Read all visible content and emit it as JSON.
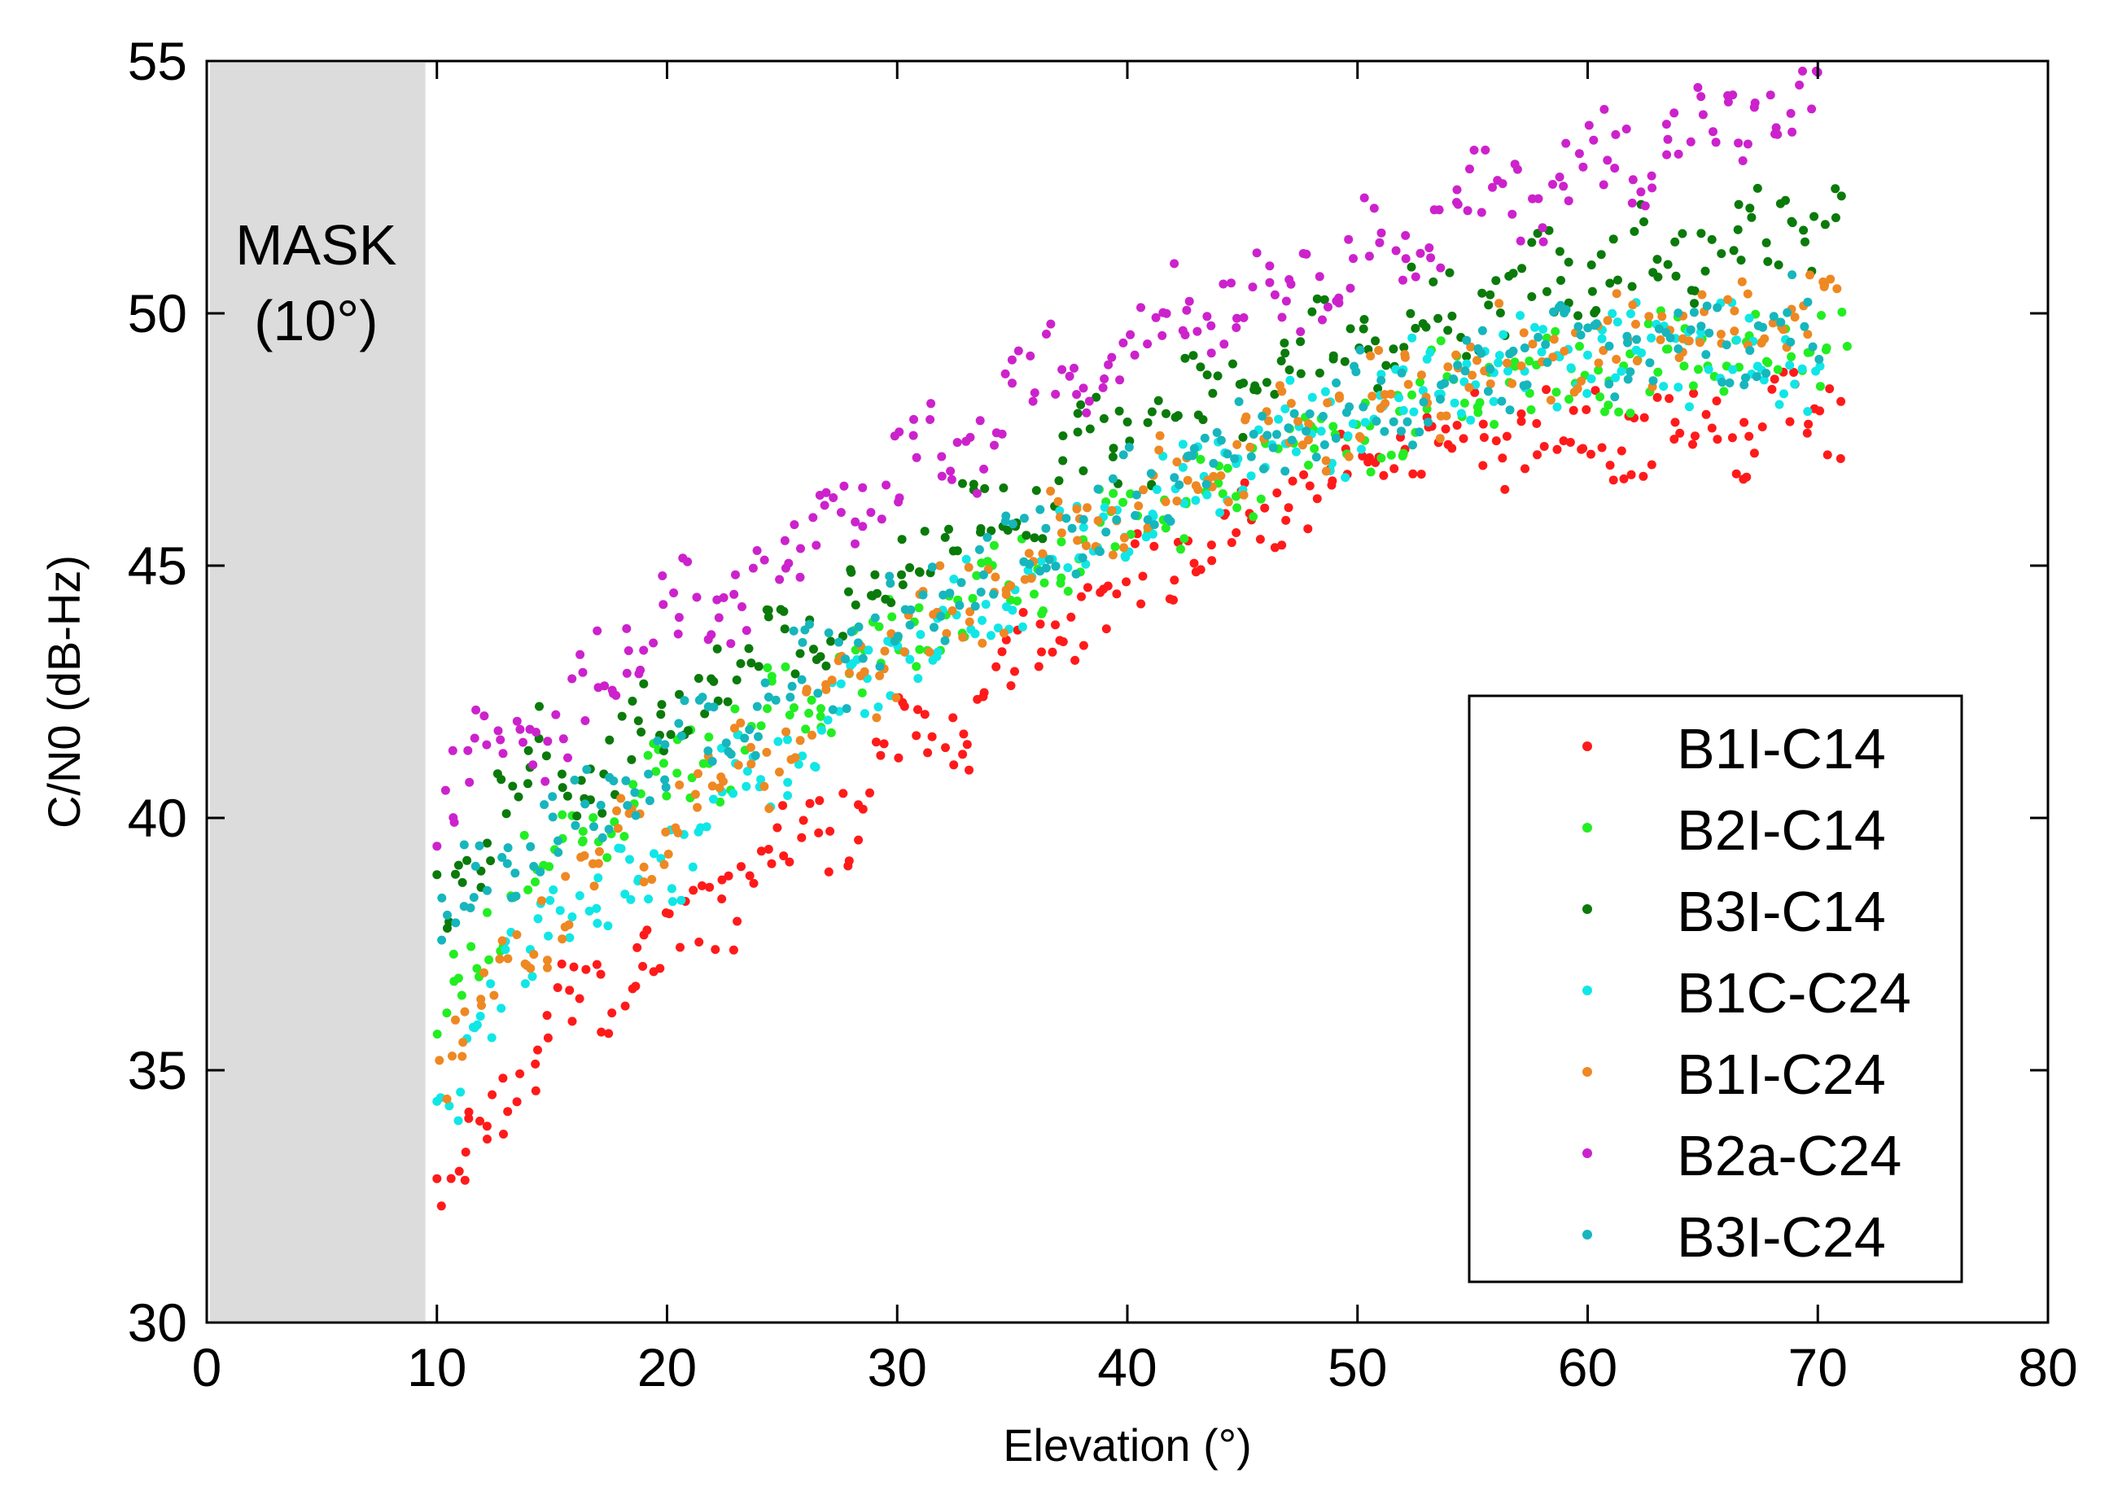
{
  "chart_data": {
    "type": "scatter",
    "title": "",
    "xlabel": "Elevation (°)",
    "ylabel": "C/N0 (dB-Hz)",
    "xlim": [
      0,
      80
    ],
    "ylim": [
      30,
      55
    ],
    "xticks": [
      0,
      10,
      20,
      30,
      40,
      50,
      60,
      70,
      80
    ],
    "yticks": [
      30,
      35,
      40,
      45,
      50,
      55
    ],
    "grid": false,
    "legend_position": "bottom-right",
    "mask_region": {
      "x_from": 0,
      "x_to": 9.5,
      "label_line1": "MASK",
      "label_line2": "(10°)",
      "color": "#dcdcdc"
    },
    "series": [
      {
        "name": "B1I-C14",
        "color": "#ff1a1a",
        "x": [
          10,
          11,
          12,
          13,
          14,
          15,
          16,
          18,
          20,
          22,
          25,
          28,
          30,
          33,
          36,
          40,
          44,
          48,
          52,
          56,
          60,
          64,
          68,
          71
        ],
        "y": [
          32.4,
          33.0,
          34.0,
          34.6,
          35.3,
          35.8,
          36.3,
          36.9,
          37.5,
          38.3,
          39.2,
          40.2,
          41.2,
          42.0,
          43.2,
          44.6,
          45.6,
          46.5,
          47.2,
          47.6,
          47.8,
          47.6,
          47.8,
          48.0
        ]
      },
      {
        "name": "B2I-C14",
        "color": "#22ee22",
        "x": [
          10,
          11,
          12,
          13,
          14,
          15,
          16,
          18,
          20,
          22,
          25,
          28,
          30,
          33,
          36,
          40,
          44,
          48,
          52,
          56,
          60,
          64,
          68,
          71
        ],
        "y": [
          35.8,
          37.0,
          37.8,
          38.5,
          39.0,
          39.4,
          39.8,
          40.3,
          40.8,
          41.3,
          42.2,
          43.0,
          43.6,
          44.2,
          45.0,
          45.6,
          46.6,
          47.4,
          48.1,
          48.6,
          48.7,
          48.9,
          49.2,
          49.8
        ]
      },
      {
        "name": "B3I-C14",
        "color": "#0a7a0a",
        "x": [
          10,
          11,
          12,
          13,
          14,
          15,
          16,
          18,
          20,
          22,
          25,
          28,
          30,
          33,
          36,
          40,
          44,
          48,
          52,
          56,
          60,
          64,
          68,
          71
        ],
        "y": [
          37.9,
          38.8,
          39.8,
          40.6,
          41.1,
          41.2,
          41.0,
          41.2,
          41.8,
          42.8,
          43.6,
          44.3,
          45.0,
          45.8,
          46.6,
          47.5,
          48.4,
          49.2,
          49.8,
          50.3,
          50.8,
          51.2,
          51.5,
          51.8
        ]
      },
      {
        "name": "B1C-C24",
        "color": "#11e6e6",
        "x": [
          10,
          11,
          12,
          13,
          14,
          15,
          16,
          18,
          20,
          22,
          25,
          28,
          30,
          33,
          36,
          40,
          44,
          48,
          52,
          56,
          60,
          64,
          68,
          70
        ],
        "y": [
          35.0,
          35.2,
          35.8,
          36.5,
          37.3,
          38.0,
          38.6,
          38.3,
          39.2,
          40.3,
          41.3,
          42.3,
          43.2,
          44.0,
          45.0,
          45.9,
          46.9,
          47.7,
          48.3,
          48.8,
          49.1,
          49.3,
          49.2,
          49.0
        ]
      },
      {
        "name": "B1I-C24",
        "color": "#ee8822",
        "x": [
          10,
          11,
          12,
          13,
          14,
          15,
          16,
          18,
          20,
          22,
          25,
          28,
          30,
          33,
          36,
          40,
          44,
          48,
          52,
          56,
          60,
          64,
          68,
          71
        ],
        "y": [
          35.4,
          35.7,
          36.3,
          37.1,
          37.8,
          38.3,
          38.8,
          39.3,
          40.0,
          40.6,
          41.5,
          42.6,
          43.4,
          44.2,
          45.2,
          46.1,
          47.0,
          47.9,
          48.5,
          49.0,
          49.4,
          49.7,
          49.9,
          50.1
        ]
      },
      {
        "name": "B2a-C24",
        "color": "#cc22cc",
        "x": [
          10,
          11,
          12,
          13,
          14,
          15,
          16,
          18,
          20,
          22,
          24,
          26,
          28,
          30,
          33,
          36,
          39,
          42,
          45,
          48,
          51,
          54,
          57,
          60,
          63,
          66,
          68,
          70
        ],
        "y": [
          40.3,
          40.7,
          41.2,
          41.5,
          41.6,
          41.6,
          42.0,
          43.3,
          44.5,
          43.6,
          45.2,
          45.0,
          46.0,
          46.9,
          47.3,
          48.7,
          49.1,
          50.2,
          50.3,
          50.8,
          51.3,
          51.9,
          52.4,
          52.9,
          53.4,
          53.7,
          54.0,
          53.9
        ]
      },
      {
        "name": "B3I-C24",
        "color": "#16b6bc",
        "x": [
          10,
          11,
          12,
          13,
          14,
          15,
          16,
          18,
          20,
          22,
          25,
          28,
          30,
          33,
          36,
          40,
          44,
          48,
          52,
          56,
          60,
          64,
          68,
          70
        ],
        "y": [
          37.6,
          38.3,
          38.8,
          39.1,
          39.4,
          39.6,
          39.9,
          40.4,
          40.9,
          41.6,
          42.5,
          43.3,
          44.0,
          44.7,
          45.5,
          46.3,
          47.1,
          47.9,
          48.5,
          49.0,
          49.3,
          49.5,
          49.6,
          49.6
        ]
      }
    ]
  }
}
